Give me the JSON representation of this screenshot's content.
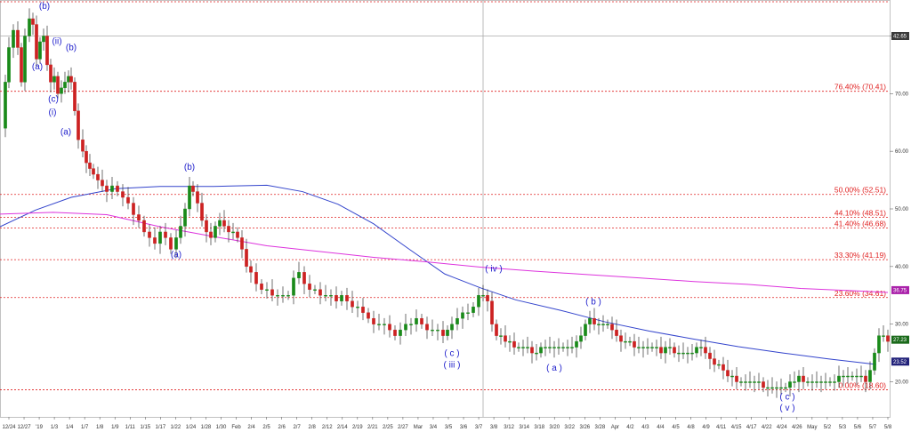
{
  "chart_data": {
    "type": "candlestick",
    "title": "",
    "xlabel": "",
    "ylabel": "",
    "ylim": [
      15,
      89
    ],
    "y_ticks": [
      20,
      30,
      40,
      50,
      60,
      70,
      80
    ],
    "y_tick_labels": [
      "20.00",
      "30.00",
      "40.00",
      "50.00",
      "60.00",
      "70.00",
      "80.00"
    ],
    "grid": false,
    "x_tick_labels": [
      "12/24",
      "12/27",
      "'19",
      "1/3",
      "1/4",
      "1/7",
      "1/8",
      "1/9",
      "1/11",
      "1/15",
      "1/17",
      "1/22",
      "1/24",
      "1/28",
      "1/30",
      "Feb",
      "2/4",
      "2/5",
      "2/6",
      "2/7",
      "2/8",
      "2/12",
      "2/14",
      "2/19",
      "2/21",
      "2/25",
      "2/27",
      "Mar",
      "3/4",
      "3/5",
      "3/6",
      "3/7",
      "3/8",
      "3/12",
      "3/14",
      "3/18",
      "3/20",
      "3/22",
      "3/26",
      "3/28",
      "Apr",
      "4/2",
      "4/3",
      "4/4",
      "4/5",
      "4/8",
      "4/9",
      "4/11",
      "4/15",
      "4/17",
      "4/22",
      "4/24",
      "4/26",
      "May",
      "5/2",
      "5/3",
      "5/6",
      "5/7",
      "5/8"
    ],
    "fib_levels": [
      {
        "label": "76.40% (70.41)",
        "value": 70.41
      },
      {
        "label": "50.00% (52.51)",
        "value": 52.51
      },
      {
        "label": "44.10% (48.51)",
        "value": 48.51
      },
      {
        "label": "41.40% (46.68)",
        "value": 46.68
      },
      {
        "label": "33.30% (41.19)",
        "value": 41.19
      },
      {
        "label": "23.60% (34.61)",
        "value": 34.61
      },
      {
        "label": "0.00% (18.60)",
        "value": 18.6
      }
    ],
    "wave_labels": [
      {
        "text": "(b)",
        "x": 50,
        "y": 84.7
      },
      {
        "text": "(ii)",
        "x": 64,
        "y": 78.6
      },
      {
        "text": "(b)",
        "x": 80,
        "y": 77.5
      },
      {
        "text": "(a)",
        "x": 42,
        "y": 74.2
      },
      {
        "text": "(c)",
        "x": 60,
        "y": 68.6
      },
      {
        "text": "(i)",
        "x": 59,
        "y": 66.3
      },
      {
        "text": "(a)",
        "x": 74,
        "y": 62.9
      },
      {
        "text": "(b)",
        "x": 213,
        "y": 56.8
      },
      {
        "text": "(a)",
        "x": 198,
        "y": 41.6
      },
      {
        "text": "( iv )",
        "x": 555,
        "y": 39.1
      },
      {
        "text": "( b )",
        "x": 667,
        "y": 33.4
      },
      {
        "text": "( c )",
        "x": 508,
        "y": 24.5
      },
      {
        "text": "( iii )",
        "x": 508,
        "y": 22.5
      },
      {
        "text": "( a )",
        "x": 623,
        "y": 21.9
      },
      {
        "text": "( c )",
        "x": 885,
        "y": 16.9
      },
      {
        "text": "( v )",
        "x": 885,
        "y": 15.0
      }
    ],
    "series": [
      {
        "type": "moving-average",
        "color": "#3344cc",
        "points": [
          [
            0,
            46.9
          ],
          [
            40,
            49.8
          ],
          [
            80,
            52.0
          ],
          [
            130,
            53.5
          ],
          [
            180,
            53.9
          ],
          [
            240,
            53.9
          ],
          [
            300,
            54.1
          ],
          [
            340,
            53.0
          ],
          [
            380,
            50.8
          ],
          [
            420,
            47.4
          ],
          [
            460,
            43.0
          ],
          [
            500,
            38.7
          ],
          [
            540,
            36.3
          ],
          [
            580,
            34.2
          ],
          [
            630,
            32.4
          ],
          [
            680,
            30.4
          ],
          [
            730,
            28.8
          ],
          [
            780,
            27.4
          ],
          [
            830,
            26.1
          ],
          [
            880,
            25.0
          ],
          [
            930,
            24.0
          ],
          [
            985,
            23.0
          ]
        ]
      },
      {
        "type": "moving-average",
        "color": "#dd33dd",
        "points": [
          [
            0,
            49.1
          ],
          [
            60,
            49.4
          ],
          [
            120,
            49.0
          ],
          [
            180,
            46.9
          ],
          [
            240,
            45.2
          ],
          [
            300,
            43.6
          ],
          [
            360,
            42.6
          ],
          [
            420,
            41.6
          ],
          [
            480,
            40.8
          ],
          [
            540,
            39.9
          ],
          [
            600,
            39.2
          ],
          [
            660,
            38.6
          ],
          [
            720,
            38.0
          ],
          [
            780,
            37.4
          ],
          [
            840,
            36.9
          ],
          [
            900,
            36.2
          ],
          [
            960,
            35.8
          ],
          [
            998,
            35.5
          ]
        ]
      },
      {
        "type": "price-path",
        "color": "#1a7a1a",
        "points": [
          [
            0,
            64
          ],
          [
            6,
            72
          ],
          [
            10,
            78
          ],
          [
            15,
            81
          ],
          [
            20,
            78
          ],
          [
            24,
            72
          ],
          [
            28,
            80
          ],
          [
            33,
            83
          ],
          [
            37,
            82
          ],
          [
            41,
            76
          ],
          [
            45,
            79
          ],
          [
            49,
            80
          ],
          [
            53,
            75
          ],
          [
            57,
            72
          ],
          [
            61,
            73
          ],
          [
            65,
            70
          ],
          [
            69,
            71
          ],
          [
            73,
            72
          ],
          [
            77,
            73
          ],
          [
            80,
            72
          ],
          [
            84,
            67
          ],
          [
            88,
            62
          ],
          [
            93,
            60
          ],
          [
            97,
            58
          ],
          [
            101,
            57
          ],
          [
            105,
            56
          ],
          [
            110,
            55
          ],
          [
            115,
            54
          ],
          [
            120,
            53
          ],
          [
            126,
            54
          ],
          [
            132,
            53
          ],
          [
            138,
            52
          ],
          [
            144,
            51
          ],
          [
            150,
            49
          ],
          [
            156,
            48
          ],
          [
            162,
            46
          ],
          [
            168,
            45
          ],
          [
            174,
            44
          ],
          [
            180,
            46
          ],
          [
            186,
            45
          ],
          [
            192,
            43
          ],
          [
            198,
            45
          ],
          [
            203,
            47
          ],
          [
            208,
            50
          ],
          [
            213,
            54
          ],
          [
            217,
            53
          ],
          [
            222,
            51
          ],
          [
            227,
            48
          ],
          [
            232,
            46
          ],
          [
            237,
            45
          ],
          [
            242,
            47
          ],
          [
            247,
            48
          ],
          [
            252,
            47
          ],
          [
            257,
            46
          ],
          [
            262,
            46
          ],
          [
            267,
            45
          ],
          [
            272,
            43
          ],
          [
            277,
            40
          ],
          [
            282,
            39
          ],
          [
            288,
            37
          ],
          [
            294,
            36
          ],
          [
            300,
            36
          ],
          [
            306,
            35
          ],
          [
            312,
            35
          ],
          [
            318,
            35
          ],
          [
            324,
            35
          ],
          [
            330,
            38
          ],
          [
            336,
            39
          ],
          [
            342,
            37
          ],
          [
            348,
            36
          ],
          [
            354,
            36
          ],
          [
            360,
            35
          ],
          [
            366,
            35
          ],
          [
            372,
            35
          ],
          [
            378,
            34
          ],
          [
            384,
            35
          ],
          [
            390,
            34
          ],
          [
            396,
            33
          ],
          [
            402,
            33
          ],
          [
            408,
            32
          ],
          [
            414,
            31
          ],
          [
            420,
            30
          ],
          [
            426,
            30
          ],
          [
            432,
            30
          ],
          [
            438,
            29
          ],
          [
            444,
            28
          ],
          [
            450,
            29
          ],
          [
            456,
            30
          ],
          [
            462,
            30
          ],
          [
            468,
            31
          ],
          [
            474,
            30
          ],
          [
            480,
            29
          ],
          [
            486,
            29
          ],
          [
            492,
            29
          ],
          [
            498,
            28
          ],
          [
            503,
            29
          ],
          [
            508,
            30
          ],
          [
            514,
            31
          ],
          [
            520,
            32
          ],
          [
            526,
            32
          ],
          [
            532,
            33
          ],
          [
            538,
            35
          ],
          [
            543,
            35
          ],
          [
            548,
            34
          ],
          [
            553,
            30
          ],
          [
            558,
            28
          ],
          [
            563,
            28
          ],
          [
            568,
            27
          ],
          [
            573,
            27
          ],
          [
            578,
            26
          ],
          [
            583,
            26
          ],
          [
            588,
            26
          ],
          [
            593,
            26
          ],
          [
            598,
            25
          ],
          [
            603,
            25
          ],
          [
            608,
            26
          ],
          [
            613,
            26
          ],
          [
            618,
            26
          ],
          [
            623,
            26
          ],
          [
            628,
            26
          ],
          [
            633,
            26
          ],
          [
            638,
            26
          ],
          [
            643,
            26
          ],
          [
            648,
            27
          ],
          [
            653,
            28
          ],
          [
            658,
            30
          ],
          [
            663,
            31
          ],
          [
            668,
            30
          ],
          [
            673,
            30
          ],
          [
            678,
            30
          ],
          [
            683,
            30
          ],
          [
            688,
            29
          ],
          [
            693,
            28
          ],
          [
            698,
            27
          ],
          [
            703,
            27
          ],
          [
            708,
            27
          ],
          [
            713,
            26
          ],
          [
            718,
            26
          ],
          [
            723,
            26
          ],
          [
            728,
            26
          ],
          [
            733,
            26
          ],
          [
            738,
            26
          ],
          [
            743,
            25
          ],
          [
            748,
            26
          ],
          [
            753,
            26
          ],
          [
            758,
            25
          ],
          [
            763,
            25
          ],
          [
            768,
            25
          ],
          [
            773,
            25
          ],
          [
            778,
            25
          ],
          [
            783,
            26
          ],
          [
            788,
            26
          ],
          [
            793,
            25
          ],
          [
            798,
            24
          ],
          [
            803,
            23
          ],
          [
            808,
            23
          ],
          [
            813,
            22
          ],
          [
            818,
            21
          ],
          [
            823,
            21
          ],
          [
            828,
            20
          ],
          [
            833,
            20
          ],
          [
            838,
            20
          ],
          [
            843,
            20
          ],
          [
            848,
            20
          ],
          [
            853,
            20
          ],
          [
            858,
            19
          ],
          [
            863,
            19
          ],
          [
            868,
            19
          ],
          [
            873,
            19
          ],
          [
            878,
            19
          ],
          [
            883,
            19
          ],
          [
            888,
            20
          ],
          [
            893,
            20
          ],
          [
            898,
            21
          ],
          [
            903,
            20
          ],
          [
            908,
            20
          ],
          [
            913,
            20
          ],
          [
            918,
            20
          ],
          [
            923,
            20
          ],
          [
            928,
            20
          ],
          [
            933,
            20
          ],
          [
            938,
            20
          ],
          [
            943,
            21
          ],
          [
            948,
            21
          ],
          [
            953,
            21
          ],
          [
            958,
            21
          ],
          [
            963,
            21
          ],
          [
            968,
            21
          ],
          [
            973,
            20
          ],
          [
            978,
            22
          ],
          [
            983,
            25
          ],
          [
            988,
            28
          ],
          [
            993,
            28
          ],
          [
            998,
            27
          ]
        ]
      }
    ],
    "price_badges": [
      {
        "label": "42.65",
        "value": 80.0,
        "color": "#3a3a3a"
      },
      {
        "label": "36.75",
        "value": 35.9,
        "color": "#aa22aa"
      },
      {
        "label": "27.23",
        "value": 27.3,
        "color": "#1a6a1a"
      },
      {
        "label": "23.52",
        "value": 23.5,
        "color": "#22227a"
      }
    ],
    "crosshair": {
      "x": 543,
      "y": 80.0
    }
  }
}
